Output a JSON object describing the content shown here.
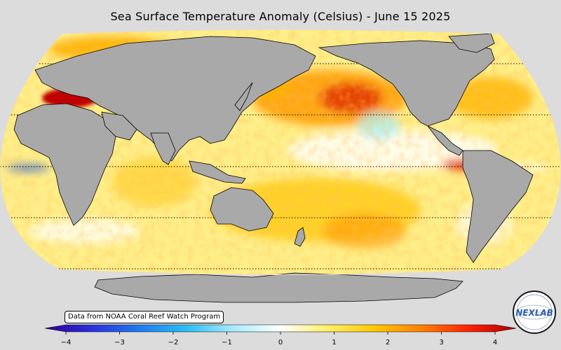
{
  "title": "Sea Surface Temperature Anomaly (Celsius) - June 15 2025",
  "credit": "Data from NOAA Coral Reef Watch Program",
  "logo_text": "NEXLAB",
  "colorbar": {
    "min": -4,
    "max": 4,
    "ticks": [
      "−4",
      "−3",
      "−2",
      "−1",
      "0",
      "1",
      "2",
      "3",
      "4"
    ],
    "colors": [
      "#30009a",
      "#2a2ee0",
      "#1c7cf0",
      "#28c0f8",
      "#a8ecfc",
      "#ffffff",
      "#fff066",
      "#ffc800",
      "#ff8000",
      "#ff2000",
      "#b00000"
    ]
  },
  "colors": {
    "background": "#dcdcdc",
    "land": "#a9a9a9",
    "ocean_base": "#ffef8a"
  }
}
